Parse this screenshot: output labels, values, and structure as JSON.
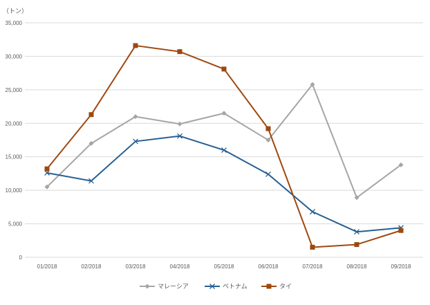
{
  "chart_data": {
    "type": "line",
    "title": "",
    "unit_label": "（トン）",
    "xlabel": "",
    "ylabel": "",
    "categories": [
      "01/2018",
      "02/2018",
      "03/2018",
      "04/2018",
      "05/2018",
      "06/2018",
      "07/2018",
      "08/2018",
      "09/2018"
    ],
    "ylim": [
      0,
      35000
    ],
    "yticks": [
      0,
      5000,
      10000,
      15000,
      20000,
      25000,
      30000,
      35000
    ],
    "ytick_labels": [
      "0",
      "5,000",
      "10,000",
      "15,000",
      "20,000",
      "25,000",
      "30,000",
      "35,000"
    ],
    "grid": true,
    "legend_position": "bottom",
    "series": [
      {
        "name": "マレーシア",
        "color": "#a5a5a5",
        "marker": "diamond",
        "values": [
          10500,
          17000,
          21000,
          19900,
          21500,
          17500,
          25800,
          8900,
          13800
        ]
      },
      {
        "name": "ベトナム",
        "color": "#255e91",
        "marker": "x",
        "values": [
          12600,
          11400,
          17300,
          18100,
          16000,
          12400,
          6800,
          3800,
          4400
        ]
      },
      {
        "name": "タイ",
        "color": "#9e480e",
        "marker": "square",
        "values": [
          13200,
          21300,
          31600,
          30700,
          28100,
          19200,
          1500,
          1900,
          4000
        ]
      }
    ]
  }
}
